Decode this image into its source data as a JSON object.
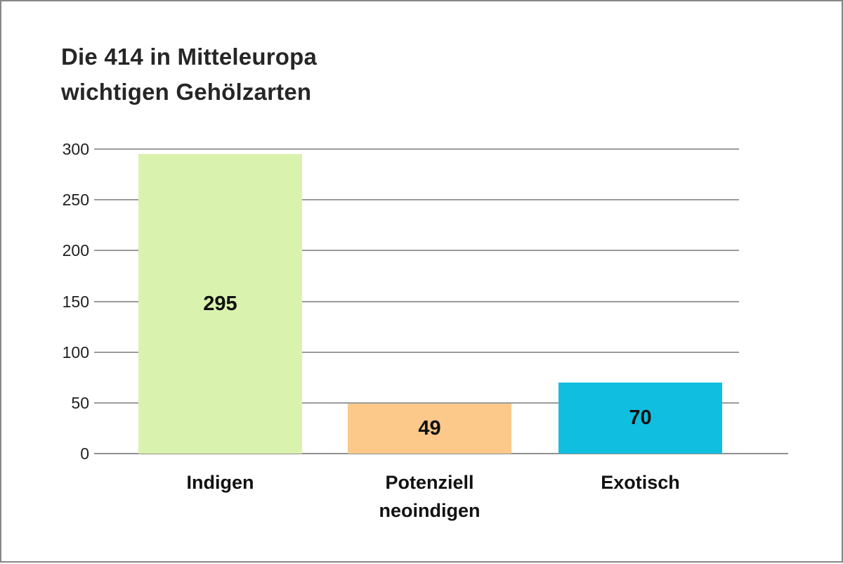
{
  "page": {
    "background": "#ffffff",
    "border_color": "#878787"
  },
  "title": {
    "line1": "Die 414 in Mitteleuropa",
    "line2": "wichtigen Gehölzarten"
  },
  "chart_data": {
    "type": "bar",
    "title": "Die 414 in Mitteleuropa wichtigen Gehölzarten",
    "categories": [
      "Indigen",
      "Potenziell\nneoindigen",
      "Exotisch"
    ],
    "values": [
      295,
      49,
      70
    ],
    "bar_colors": [
      "#d9f3ae",
      "#fcc98b",
      "#10bfe0"
    ],
    "value_label_color": "#111111",
    "y_ticks": [
      0,
      50,
      100,
      150,
      200,
      250,
      300
    ],
    "ylim": [
      0,
      300
    ],
    "xlabel": "",
    "ylabel": "",
    "grid": true,
    "legend": false,
    "gridline_color": "#9b9b9b",
    "axis_line_color": "#8f8f8f"
  }
}
